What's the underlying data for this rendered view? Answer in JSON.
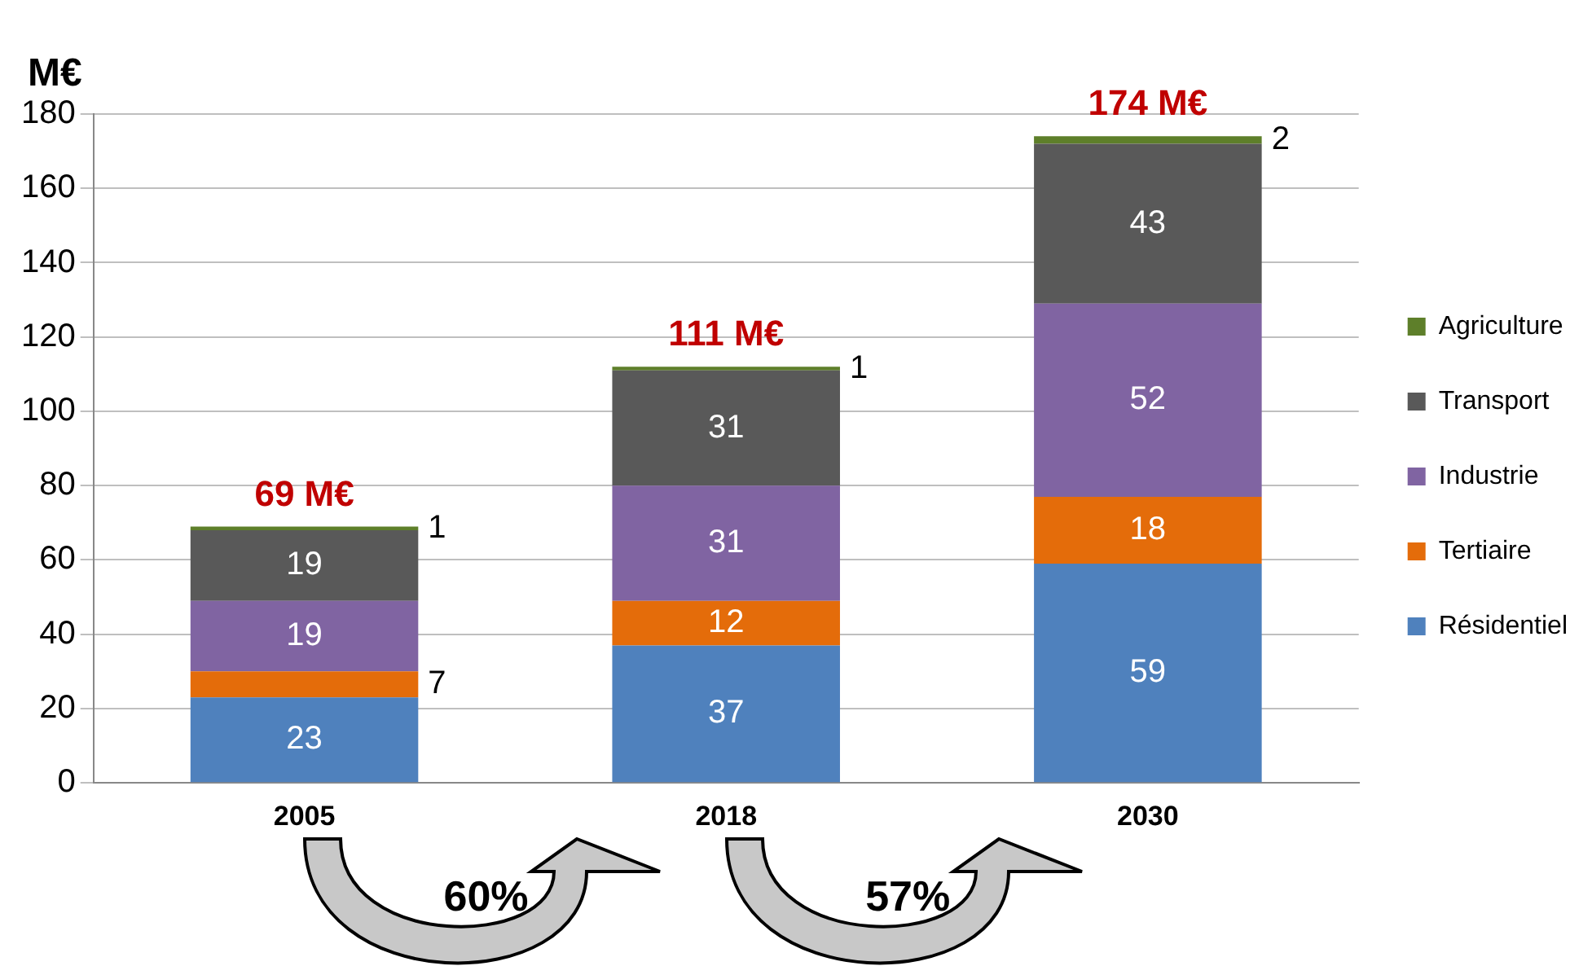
{
  "chart_data": {
    "type": "bar",
    "stacked": true,
    "ylabel": "M€",
    "categories": [
      "2005",
      "2018",
      "2030"
    ],
    "series": [
      {
        "name": "Résidentiel",
        "color": "#4f81bd",
        "values": [
          23,
          37,
          59
        ]
      },
      {
        "name": "Tertiaire",
        "color": "#e46c0a",
        "values": [
          7,
          12,
          18
        ]
      },
      {
        "name": "Industrie",
        "color": "#8064a2",
        "values": [
          19,
          31,
          52
        ]
      },
      {
        "name": "Transport",
        "color": "#595959",
        "values": [
          19,
          31,
          43
        ]
      },
      {
        "name": "Agriculture",
        "color": "#5e7f2a",
        "values": [
          1,
          1,
          2
        ]
      }
    ],
    "ylim": [
      0,
      180
    ],
    "yticks": [
      0,
      20,
      40,
      60,
      80,
      100,
      120,
      140,
      160,
      180
    ],
    "grid": "y",
    "legend": "right",
    "data_labels": true,
    "totals": [
      "69 M€",
      "111 M€",
      "174 M€"
    ],
    "annotations": [
      "60%",
      "57%"
    ]
  }
}
